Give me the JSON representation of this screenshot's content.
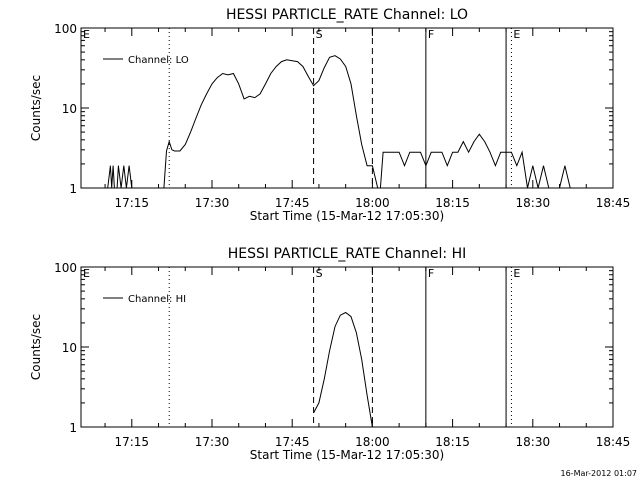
{
  "footer": {
    "timestamp": "16-Mar-2012 01:07"
  },
  "chart_data": [
    {
      "type": "line",
      "title": "HESSI PARTICLE_RATE Channel: LO",
      "xlabel": "Start Time (15-Mar-12 17:05:30)",
      "ylabel": "Counts/sec",
      "yscale": "log",
      "xlim": [
        "17:05:30",
        "18:45"
      ],
      "ylim": [
        1,
        100
      ],
      "xticks": [
        "17:15",
        "17:30",
        "17:45",
        "18:00",
        "18:15",
        "18:30",
        "18:45"
      ],
      "yticks": [
        "1",
        "10",
        "100"
      ],
      "legend_position": "top-left",
      "legend": "Channel: LO",
      "series": [
        {
          "name": "Channel: LO",
          "color": "#000000",
          "points": [
            [
              "17:10:30",
              1.0
            ],
            [
              "17:11:00",
              1.9
            ],
            [
              "17:11:15",
              1.0
            ],
            [
              "17:11:30",
              1.9
            ],
            [
              "17:11:45",
              1.0
            ],
            [
              "17:12:15",
              1.0
            ],
            [
              "17:12:30",
              1.9
            ],
            [
              "17:13:00",
              1.0
            ],
            [
              "17:13:30",
              1.9
            ],
            [
              "17:14:00",
              1.0
            ],
            [
              "17:14:30",
              1.9
            ],
            [
              "17:15:00",
              1.0
            ],
            [
              "17:21:00",
              1.0
            ],
            [
              "17:21:30",
              2.9
            ],
            [
              "17:22:00",
              3.8
            ],
            [
              "17:22:30",
              3.0
            ],
            [
              "17:23:00",
              2.9
            ],
            [
              "17:24:00",
              2.9
            ],
            [
              "17:25:00",
              3.5
            ],
            [
              "17:26:00",
              5.0
            ],
            [
              "17:27:00",
              7.5
            ],
            [
              "17:28:00",
              11.0
            ],
            [
              "17:29:00",
              15.0
            ],
            [
              "17:30:00",
              20.0
            ],
            [
              "17:31:00",
              24.0
            ],
            [
              "17:32:00",
              27.0
            ],
            [
              "17:33:00",
              26.0
            ],
            [
              "17:34:00",
              27.0
            ],
            [
              "17:35:00",
              20.0
            ],
            [
              "17:36:00",
              13.0
            ],
            [
              "17:37:00",
              14.0
            ],
            [
              "17:38:00",
              13.5
            ],
            [
              "17:39:00",
              15.0
            ],
            [
              "17:40:00",
              20.0
            ],
            [
              "17:41:00",
              27.0
            ],
            [
              "17:42:00",
              33.0
            ],
            [
              "17:43:00",
              38.0
            ],
            [
              "17:44:00",
              40.0
            ],
            [
              "17:45:00",
              39.0
            ],
            [
              "17:46:00",
              38.0
            ],
            [
              "17:47:00",
              33.0
            ],
            [
              "17:48:00",
              25.0
            ],
            [
              "17:49:00",
              19.0
            ],
            [
              "17:50:00",
              22.0
            ],
            [
              "17:51:00",
              32.0
            ],
            [
              "17:52:00",
              43.0
            ],
            [
              "17:53:00",
              45.0
            ],
            [
              "17:54:00",
              41.0
            ],
            [
              "17:55:00",
              33.0
            ],
            [
              "17:56:00",
              20.0
            ],
            [
              "17:57:00",
              8.0
            ],
            [
              "17:58:00",
              3.5
            ],
            [
              "17:59:00",
              1.9
            ],
            [
              "18:00:00",
              1.9
            ],
            [
              "18:01:00",
              1.0
            ],
            [
              "18:01:30",
              1.0
            ],
            [
              "18:02:00",
              2.8
            ],
            [
              "18:03:00",
              2.8
            ],
            [
              "18:04:00",
              2.8
            ],
            [
              "18:05:00",
              2.8
            ],
            [
              "18:06:00",
              1.9
            ],
            [
              "18:07:00",
              2.8
            ],
            [
              "18:08:00",
              2.8
            ],
            [
              "18:09:00",
              2.8
            ],
            [
              "18:10:00",
              1.9
            ],
            [
              "18:11:00",
              2.8
            ],
            [
              "18:12:00",
              2.8
            ],
            [
              "18:13:00",
              2.8
            ],
            [
              "18:14:00",
              1.9
            ],
            [
              "18:15:00",
              2.8
            ],
            [
              "18:16:00",
              2.8
            ],
            [
              "18:17:00",
              3.8
            ],
            [
              "18:18:00",
              2.8
            ],
            [
              "18:19:00",
              3.8
            ],
            [
              "18:20:00",
              4.7
            ],
            [
              "18:21:00",
              3.8
            ],
            [
              "18:22:00",
              2.8
            ],
            [
              "18:23:00",
              1.9
            ],
            [
              "18:24:00",
              2.8
            ],
            [
              "18:25:00",
              2.8
            ],
            [
              "18:26:00",
              2.8
            ],
            [
              "18:27:00",
              1.9
            ],
            [
              "18:28:00",
              2.8
            ],
            [
              "18:29:00",
              1.0
            ],
            [
              "18:30:00",
              1.9
            ],
            [
              "18:31:00",
              1.0
            ],
            [
              "18:32:00",
              1.9
            ],
            [
              "18:33:00",
              1.0
            ],
            [
              "18:35:00",
              1.0
            ],
            [
              "18:36:00",
              1.9
            ],
            [
              "18:37:00",
              1.0
            ]
          ]
        }
      ],
      "markers": [
        {
          "label": "E",
          "time": "17:05:30",
          "style": "dotted"
        },
        {
          "label": "",
          "time": "17:22:00",
          "style": "dotted"
        },
        {
          "label": "S",
          "time": "17:49:00",
          "style": "dashed"
        },
        {
          "label": "",
          "time": "18:00:00",
          "style": "dashed"
        },
        {
          "label": "F",
          "time": "18:10:00",
          "style": "solid"
        },
        {
          "label": "",
          "time": "18:25:00",
          "style": "solid"
        },
        {
          "label": "E",
          "time": "18:26:00",
          "style": "dotted"
        },
        {
          "label": "",
          "time": "18:45:00",
          "style": "dotted"
        }
      ]
    },
    {
      "type": "line",
      "title": "HESSI PARTICLE_RATE Channel: HI",
      "xlabel": "Start Time (15-Mar-12 17:05:30)",
      "ylabel": "Counts/sec",
      "yscale": "log",
      "xlim": [
        "17:05:30",
        "18:45"
      ],
      "ylim": [
        1,
        100
      ],
      "xticks": [
        "17:15",
        "17:30",
        "17:45",
        "18:00",
        "18:15",
        "18:30",
        "18:45"
      ],
      "yticks": [
        "1",
        "10",
        "100"
      ],
      "legend_position": "top-left",
      "legend": "Channel: HI",
      "series": [
        {
          "name": "Channel: HI",
          "color": "#000000",
          "points": [
            [
              "17:49:00",
              1.5
            ],
            [
              "17:50:00",
              2.0
            ],
            [
              "17:51:00",
              4.0
            ],
            [
              "17:52:00",
              9.0
            ],
            [
              "17:53:00",
              18.0
            ],
            [
              "17:54:00",
              25.0
            ],
            [
              "17:55:00",
              27.0
            ],
            [
              "17:56:00",
              24.0
            ],
            [
              "17:57:00",
              15.0
            ],
            [
              "17:58:00",
              7.0
            ],
            [
              "17:59:00",
              2.5
            ],
            [
              "18:00:00",
              1.0
            ]
          ]
        }
      ],
      "markers": [
        {
          "label": "E",
          "time": "17:05:30",
          "style": "dotted"
        },
        {
          "label": "",
          "time": "17:22:00",
          "style": "dotted"
        },
        {
          "label": "S",
          "time": "17:49:00",
          "style": "dashed"
        },
        {
          "label": "",
          "time": "18:00:00",
          "style": "dashed"
        },
        {
          "label": "F",
          "time": "18:10:00",
          "style": "solid"
        },
        {
          "label": "",
          "time": "18:25:00",
          "style": "solid"
        },
        {
          "label": "E",
          "time": "18:26:00",
          "style": "dotted"
        },
        {
          "label": "",
          "time": "18:45:00",
          "style": "dotted"
        }
      ]
    }
  ]
}
